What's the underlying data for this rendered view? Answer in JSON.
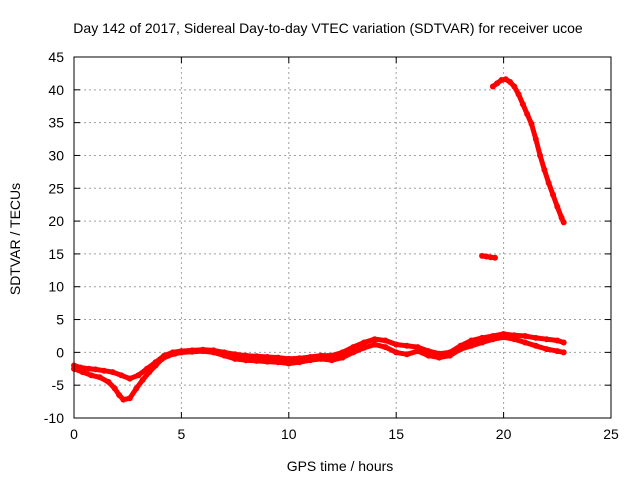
{
  "chart_data": {
    "type": "scatter",
    "title": "Day 142 of 2017, Sidereal Day-to-day VTEC variation (SDTVAR) for receiver ucoe",
    "xlabel": "GPS time / hours",
    "ylabel": "SDTVAR / TECUs",
    "xlim": [
      0,
      25
    ],
    "ylim": [
      -10,
      45
    ],
    "xticks": [
      0,
      5,
      10,
      15,
      20,
      25
    ],
    "yticks": [
      -10,
      -5,
      0,
      5,
      10,
      15,
      20,
      25,
      30,
      35,
      40,
      45
    ],
    "grid": true,
    "colors": {
      "series": "#ff0000",
      "grid": "#a0a0a0",
      "axes": "#000000"
    },
    "series": [
      {
        "name": "SDTVAR upper trace",
        "x": [
          0.0,
          0.3,
          0.7,
          1.0,
          1.4,
          1.8,
          2.2,
          2.6,
          3.0,
          3.4,
          3.8,
          4.2,
          4.6,
          5.0,
          5.5,
          6.0,
          6.5,
          7.0,
          7.5,
          8.0,
          8.5,
          9.0,
          9.5,
          10.0,
          10.5,
          11.0,
          11.5,
          12.0,
          12.5,
          13.0,
          13.5,
          14.0,
          14.5,
          15.0,
          15.5,
          16.0,
          16.5,
          17.0,
          17.5,
          18.0,
          18.5,
          19.0,
          19.5,
          20.0,
          20.5,
          21.0,
          21.5,
          22.0,
          22.5,
          22.8
        ],
        "y": [
          -2.0,
          -2.3,
          -2.5,
          -2.6,
          -2.8,
          -3.0,
          -3.5,
          -4.0,
          -3.5,
          -2.5,
          -1.5,
          -0.5,
          0.0,
          0.2,
          0.3,
          0.4,
          0.3,
          0.0,
          -0.3,
          -0.5,
          -0.6,
          -0.7,
          -0.8,
          -1.0,
          -0.9,
          -0.7,
          -0.5,
          -0.5,
          0.0,
          0.8,
          1.5,
          2.0,
          1.8,
          1.2,
          1.0,
          0.8,
          0.2,
          -0.2,
          0.0,
          1.0,
          1.8,
          2.2,
          2.5,
          2.8,
          2.6,
          2.5,
          2.2,
          2.0,
          1.8,
          1.5
        ]
      },
      {
        "name": "SDTVAR lower trace",
        "x": [
          0.0,
          0.4,
          0.8,
          1.2,
          1.6,
          1.9,
          2.1,
          2.3,
          2.6,
          2.9,
          3.2,
          3.5,
          3.8,
          4.1,
          4.4,
          4.7,
          5.0,
          5.5,
          6.0,
          6.5,
          7.0,
          7.5,
          8.0,
          8.5,
          9.0,
          9.5,
          10.0,
          10.5,
          11.0,
          11.5,
          12.0,
          12.5,
          13.0,
          13.5,
          14.0,
          14.5,
          15.0,
          15.5,
          16.0,
          16.5,
          17.0,
          17.5,
          18.0,
          18.5,
          19.0,
          19.5,
          20.0,
          20.5,
          21.0,
          21.5,
          22.0,
          22.5,
          22.8
        ],
        "y": [
          -2.5,
          -3.0,
          -3.5,
          -3.8,
          -4.5,
          -5.5,
          -6.5,
          -7.2,
          -7.0,
          -5.5,
          -4.2,
          -3.0,
          -2.0,
          -1.0,
          -0.5,
          -0.2,
          0.0,
          0.1,
          0.2,
          0.0,
          -0.5,
          -1.0,
          -1.2,
          -1.3,
          -1.4,
          -1.5,
          -1.7,
          -1.5,
          -1.2,
          -1.0,
          -1.2,
          -0.8,
          0.0,
          0.7,
          1.2,
          0.8,
          0.0,
          -0.3,
          0.2,
          -0.5,
          -0.8,
          -0.5,
          0.5,
          1.0,
          1.5,
          2.0,
          2.3,
          2.0,
          1.5,
          1.0,
          0.5,
          0.2,
          0.0
        ]
      },
      {
        "name": "SDTVAR short segment",
        "x": [
          19.0,
          19.2,
          19.4,
          19.6
        ],
        "y": [
          14.7,
          14.6,
          14.5,
          14.4
        ]
      },
      {
        "name": "SDTVAR steep arc",
        "x": [
          19.5,
          19.7,
          19.9,
          20.1,
          20.3,
          20.5,
          20.7,
          20.9,
          21.1,
          21.3,
          21.5,
          21.7,
          21.9,
          22.1,
          22.3,
          22.5,
          22.7,
          22.8
        ],
        "y": [
          40.5,
          41.0,
          41.5,
          41.6,
          41.2,
          40.5,
          39.3,
          37.8,
          36.3,
          34.8,
          32.5,
          30.0,
          27.8,
          25.8,
          24.0,
          22.2,
          20.5,
          19.8
        ]
      }
    ]
  }
}
